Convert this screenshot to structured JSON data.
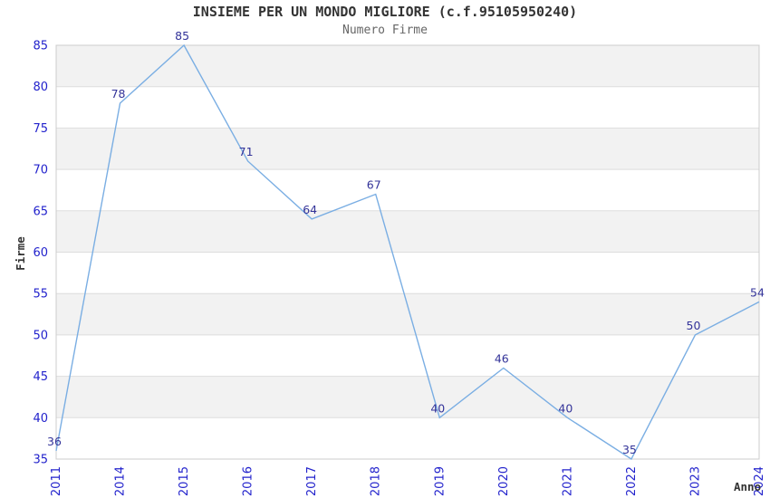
{
  "chart_data": {
    "type": "line",
    "title": "INSIEME PER UN MONDO MIGLIORE (c.f.95105950240)",
    "subtitle": "Numero Firme",
    "xlabel": "Anno",
    "ylabel": "Firme",
    "categories": [
      "2011",
      "2014",
      "2015",
      "2016",
      "2017",
      "2018",
      "2019",
      "2020",
      "2021",
      "2022",
      "2023",
      "2024"
    ],
    "values": [
      36,
      78,
      85,
      71,
      64,
      67,
      40,
      46,
      40,
      35,
      50,
      54
    ],
    "ylim": [
      35,
      85
    ],
    "ytick_step": 5,
    "yticks": [
      35,
      40,
      45,
      50,
      55,
      60,
      65,
      70,
      75,
      80,
      85
    ],
    "grid": "horizontal-bands-alternating",
    "legend_position": "none",
    "data_labels_shown": true,
    "colors": {
      "line": "#7aaee3",
      "data_label": "#333399",
      "tick_label": "#2222cc",
      "axis_label": "#333333",
      "band_gray": "#f2f2f2",
      "band_white": "#ffffff",
      "gridline": "#dddddd",
      "plot_border": "#cccccc",
      "title": "#333333",
      "subtitle": "#666666"
    }
  }
}
